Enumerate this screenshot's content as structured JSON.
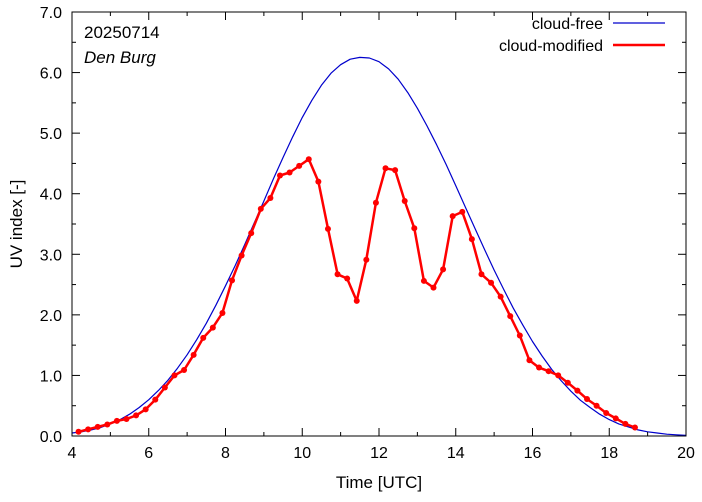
{
  "chart_data": {
    "type": "line",
    "xlabel": "Time  [UTC]",
    "ylabel": "UV index  [-]",
    "xlim": [
      4,
      20
    ],
    "ylim": [
      0,
      7
    ],
    "x_ticks": [
      "4",
      "6",
      "8",
      "10",
      "12",
      "14",
      "16",
      "18",
      "20"
    ],
    "y_ticks": [
      "0.0",
      "1.0",
      "2.0",
      "3.0",
      "4.0",
      "5.0",
      "6.0",
      "7.0"
    ],
    "annotations": {
      "date": "20250714",
      "location": "Den Burg"
    },
    "legend_position": "top-right",
    "series": [
      {
        "name": "cloud-free",
        "color": "#0000cc",
        "style": "line",
        "x": [
          4.0,
          4.25,
          4.5,
          4.75,
          5.0,
          5.25,
          5.5,
          5.75,
          6.0,
          6.25,
          6.5,
          6.75,
          7.0,
          7.25,
          7.5,
          7.75,
          8.0,
          8.25,
          8.5,
          8.75,
          9.0,
          9.25,
          9.5,
          9.75,
          10.0,
          10.25,
          10.5,
          10.75,
          11.0,
          11.25,
          11.5,
          11.75,
          12.0,
          12.25,
          12.5,
          12.75,
          13.0,
          13.25,
          13.5,
          13.75,
          14.0,
          14.25,
          14.5,
          14.75,
          15.0,
          15.25,
          15.5,
          15.75,
          16.0,
          16.25,
          16.5,
          16.75,
          17.0,
          17.25,
          17.5,
          17.75,
          18.0,
          18.25,
          18.5,
          18.75,
          19.0,
          19.25,
          19.5,
          19.75,
          20.0
        ],
        "y": [
          0.05,
          0.07,
          0.1,
          0.14,
          0.2,
          0.27,
          0.36,
          0.47,
          0.6,
          0.75,
          0.92,
          1.12,
          1.34,
          1.59,
          1.86,
          2.16,
          2.48,
          2.81,
          3.16,
          3.52,
          3.88,
          4.25,
          4.6,
          4.94,
          5.26,
          5.54,
          5.79,
          5.99,
          6.13,
          6.22,
          6.25,
          6.24,
          6.18,
          6.06,
          5.89,
          5.67,
          5.41,
          5.12,
          4.81,
          4.48,
          4.13,
          3.78,
          3.43,
          3.08,
          2.74,
          2.42,
          2.11,
          1.83,
          1.56,
          1.32,
          1.1,
          0.91,
          0.74,
          0.59,
          0.47,
          0.36,
          0.27,
          0.2,
          0.15,
          0.1,
          0.07,
          0.05,
          0.03,
          0.02,
          0.01
        ]
      },
      {
        "name": "cloud-modified",
        "color": "#ff0000",
        "style": "line-points",
        "x": [
          4.17,
          4.42,
          4.67,
          4.92,
          5.17,
          5.42,
          5.67,
          5.92,
          6.17,
          6.42,
          6.67,
          6.92,
          7.17,
          7.42,
          7.67,
          7.92,
          8.17,
          8.42,
          8.67,
          8.92,
          9.17,
          9.42,
          9.67,
          9.92,
          10.17,
          10.42,
          10.67,
          10.92,
          11.17,
          11.42,
          11.67,
          11.92,
          12.17,
          12.42,
          12.67,
          12.92,
          13.17,
          13.42,
          13.67,
          13.92,
          14.17,
          14.42,
          14.67,
          14.92,
          15.17,
          15.42,
          15.67,
          15.92,
          16.17,
          16.42,
          16.67,
          16.92,
          17.17,
          17.42,
          17.67,
          17.92,
          18.17,
          18.42,
          18.67
        ],
        "y": [
          0.07,
          0.11,
          0.15,
          0.19,
          0.25,
          0.28,
          0.34,
          0.44,
          0.6,
          0.8,
          1.0,
          1.09,
          1.34,
          1.62,
          1.79,
          2.03,
          2.57,
          2.98,
          3.35,
          3.75,
          3.93,
          4.3,
          4.35,
          4.46,
          4.57,
          4.2,
          3.42,
          2.67,
          2.6,
          2.23,
          2.91,
          3.85,
          4.42,
          4.39,
          3.88,
          3.43,
          2.56,
          2.45,
          2.75,
          3.63,
          3.7,
          3.25,
          2.67,
          2.53,
          2.3,
          1.98,
          1.66,
          1.25,
          1.13,
          1.07,
          1.0,
          0.88,
          0.75,
          0.61,
          0.5,
          0.38,
          0.29,
          0.2,
          0.14
        ]
      }
    ]
  }
}
